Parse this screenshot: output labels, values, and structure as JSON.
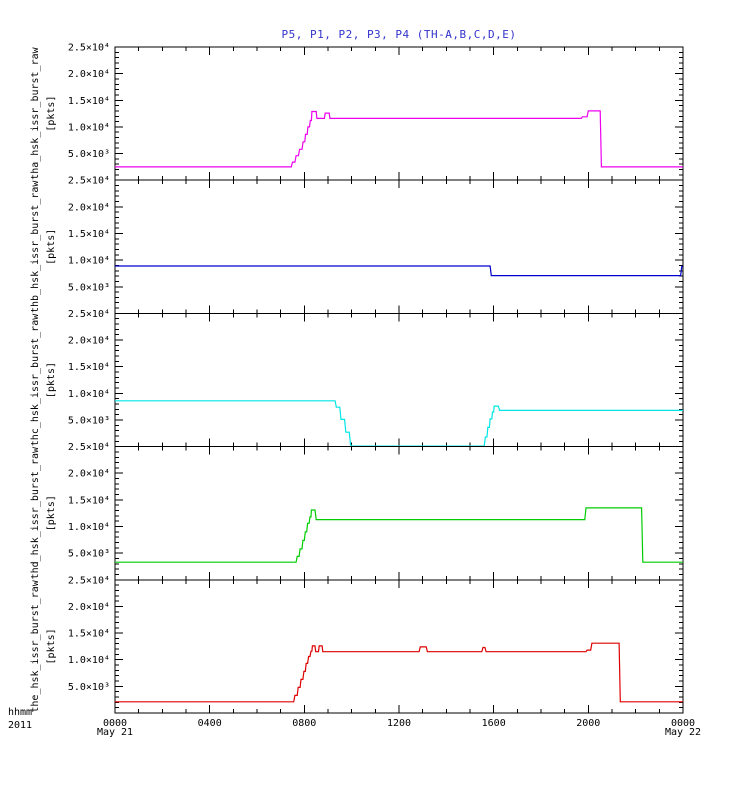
{
  "chart_data": {
    "type": "line",
    "title": "P5, P1, P2, P3, P4 (TH-A,B,C,D,E)",
    "title_color": "#3333cc",
    "x_units": "hours (hhmm of day)",
    "x_range": [
      0,
      24
    ],
    "x_minor_step": 1,
    "x_major_step": 4,
    "x_major_ticks": [
      {
        "value": 0,
        "label": "0000"
      },
      {
        "value": 4,
        "label": "0400"
      },
      {
        "value": 8,
        "label": "0800"
      },
      {
        "value": 12,
        "label": "1200"
      },
      {
        "value": 16,
        "label": "1600"
      },
      {
        "value": 20,
        "label": "2000"
      },
      {
        "value": 24,
        "label": "0000"
      }
    ],
    "y_range": [
      0,
      25000
    ],
    "y_minor_step": 1000,
    "y_major_step": 5000,
    "y_tick_labels": [
      {
        "value": 25000,
        "label": "2.5×10⁴"
      },
      {
        "value": 20000,
        "label": "2.0×10⁴"
      },
      {
        "value": 15000,
        "label": "1.5×10⁴"
      },
      {
        "value": 10000,
        "label": "1.0×10⁴"
      },
      {
        "value": 5000,
        "label": "5.0×10³"
      }
    ],
    "grid": false,
    "legend": "none",
    "panels": [
      {
        "id": "tha",
        "name": "tha_hsk_issr_burst_raw",
        "units": "[pkts]",
        "color": "#ee00ee",
        "points": [
          [
            0,
            2500
          ],
          [
            7.45,
            2500
          ],
          [
            7.5,
            3400
          ],
          [
            7.6,
            3400
          ],
          [
            7.65,
            4600
          ],
          [
            7.75,
            4600
          ],
          [
            7.8,
            5800
          ],
          [
            7.9,
            5800
          ],
          [
            7.95,
            7200
          ],
          [
            8.02,
            7200
          ],
          [
            8.05,
            8600
          ],
          [
            8.12,
            8600
          ],
          [
            8.15,
            10000
          ],
          [
            8.22,
            10000
          ],
          [
            8.25,
            11200
          ],
          [
            8.3,
            11200
          ],
          [
            8.32,
            12900
          ],
          [
            8.5,
            12900
          ],
          [
            8.53,
            11600
          ],
          [
            8.85,
            11600
          ],
          [
            8.88,
            12600
          ],
          [
            9.05,
            12600
          ],
          [
            9.08,
            11600
          ],
          [
            19.7,
            11600
          ],
          [
            19.75,
            11900
          ],
          [
            19.95,
            11900
          ],
          [
            20.0,
            13000
          ],
          [
            20.5,
            13000
          ],
          [
            20.55,
            2500
          ],
          [
            24,
            2500
          ]
        ]
      },
      {
        "id": "thb",
        "name": "thb_hsk_issr_burst_raw",
        "units": "[pkts]",
        "color": "#0000cc",
        "points": [
          [
            0,
            8900
          ],
          [
            15.85,
            8900
          ],
          [
            15.9,
            7100
          ],
          [
            23.9,
            7100
          ],
          [
            23.95,
            8800
          ],
          [
            24,
            8800
          ]
        ]
      },
      {
        "id": "thc",
        "name": "thc_hsk_issr_burst_raw",
        "units": "[pkts]",
        "color": "#00e5e5",
        "points": [
          [
            0,
            8600
          ],
          [
            9.3,
            8600
          ],
          [
            9.35,
            7400
          ],
          [
            9.5,
            7400
          ],
          [
            9.55,
            5100
          ],
          [
            9.7,
            5100
          ],
          [
            9.75,
            2700
          ],
          [
            9.9,
            2700
          ],
          [
            9.95,
            400
          ],
          [
            10.0,
            100
          ],
          [
            15.6,
            100
          ],
          [
            15.65,
            1800
          ],
          [
            15.72,
            1800
          ],
          [
            15.75,
            3600
          ],
          [
            15.82,
            3600
          ],
          [
            15.85,
            5200
          ],
          [
            15.92,
            5200
          ],
          [
            15.95,
            6500
          ],
          [
            16.0,
            6500
          ],
          [
            16.02,
            7600
          ],
          [
            16.2,
            7600
          ],
          [
            16.25,
            6800
          ],
          [
            24,
            6800
          ]
        ]
      },
      {
        "id": "thd",
        "name": "thd_hsk_issr_burst_raw",
        "units": "[pkts]",
        "color": "#00cc00",
        "points": [
          [
            0,
            3300
          ],
          [
            7.65,
            3300
          ],
          [
            7.7,
            4400
          ],
          [
            7.78,
            4400
          ],
          [
            7.82,
            5800
          ],
          [
            7.9,
            5800
          ],
          [
            7.94,
            7400
          ],
          [
            8.0,
            7400
          ],
          [
            8.04,
            9000
          ],
          [
            8.1,
            9000
          ],
          [
            8.14,
            10600
          ],
          [
            8.2,
            10600
          ],
          [
            8.24,
            11800
          ],
          [
            8.28,
            11800
          ],
          [
            8.3,
            13100
          ],
          [
            8.45,
            13100
          ],
          [
            8.5,
            11300
          ],
          [
            19.85,
            11300
          ],
          [
            19.9,
            13500
          ],
          [
            22.25,
            13500
          ],
          [
            22.3,
            3300
          ],
          [
            24,
            3300
          ]
        ]
      },
      {
        "id": "the",
        "name": "the_hsk_issr_burst_raw",
        "units": "[pkts]",
        "color": "#dd0000",
        "points": [
          [
            0,
            2100
          ],
          [
            7.55,
            2100
          ],
          [
            7.6,
            3300
          ],
          [
            7.7,
            3300
          ],
          [
            7.74,
            4800
          ],
          [
            7.82,
            4800
          ],
          [
            7.86,
            6300
          ],
          [
            7.94,
            6300
          ],
          [
            7.98,
            7800
          ],
          [
            8.04,
            7800
          ],
          [
            8.08,
            9300
          ],
          [
            8.14,
            9300
          ],
          [
            8.18,
            10600
          ],
          [
            8.24,
            10600
          ],
          [
            8.28,
            11600
          ],
          [
            8.32,
            11600
          ],
          [
            8.34,
            12600
          ],
          [
            8.45,
            12600
          ],
          [
            8.48,
            11500
          ],
          [
            8.6,
            11500
          ],
          [
            8.63,
            12600
          ],
          [
            8.75,
            12600
          ],
          [
            8.78,
            11500
          ],
          [
            12.85,
            11500
          ],
          [
            12.9,
            12400
          ],
          [
            13.15,
            12400
          ],
          [
            13.2,
            11500
          ],
          [
            15.5,
            11500
          ],
          [
            15.55,
            12300
          ],
          [
            15.63,
            12300
          ],
          [
            15.68,
            11500
          ],
          [
            19.9,
            11500
          ],
          [
            19.95,
            11800
          ],
          [
            20.1,
            11800
          ],
          [
            20.15,
            13100
          ],
          [
            21.3,
            13100
          ],
          [
            21.35,
            2100
          ],
          [
            24,
            2100
          ]
        ]
      }
    ]
  },
  "footer": {
    "hhmm": "hhmm",
    "year": "2011",
    "date_left": "May 21",
    "date_right": "May 22"
  }
}
